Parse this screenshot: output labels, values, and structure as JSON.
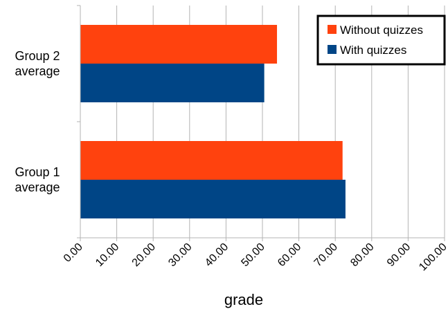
{
  "chart_data": {
    "type": "bar",
    "orientation": "horizontal",
    "categories": [
      [
        "Group 2",
        "average"
      ],
      [
        "Group 1",
        "average"
      ]
    ],
    "series": [
      {
        "name": "Without quizzes",
        "color": "#ff420e",
        "values": [
          54.0,
          72.0
        ]
      },
      {
        "name": "With quizzes",
        "color": "#004586",
        "values": [
          50.5,
          72.8
        ]
      }
    ],
    "xlabel": "grade",
    "xlim": [
      0,
      100
    ],
    "xticks": [
      "0.00",
      "10.00",
      "20.00",
      "30.00",
      "40.00",
      "50.00",
      "60.00",
      "70.00",
      "80.00",
      "90.00",
      "100.00"
    ],
    "grid": true,
    "legend_position": "top-right"
  }
}
